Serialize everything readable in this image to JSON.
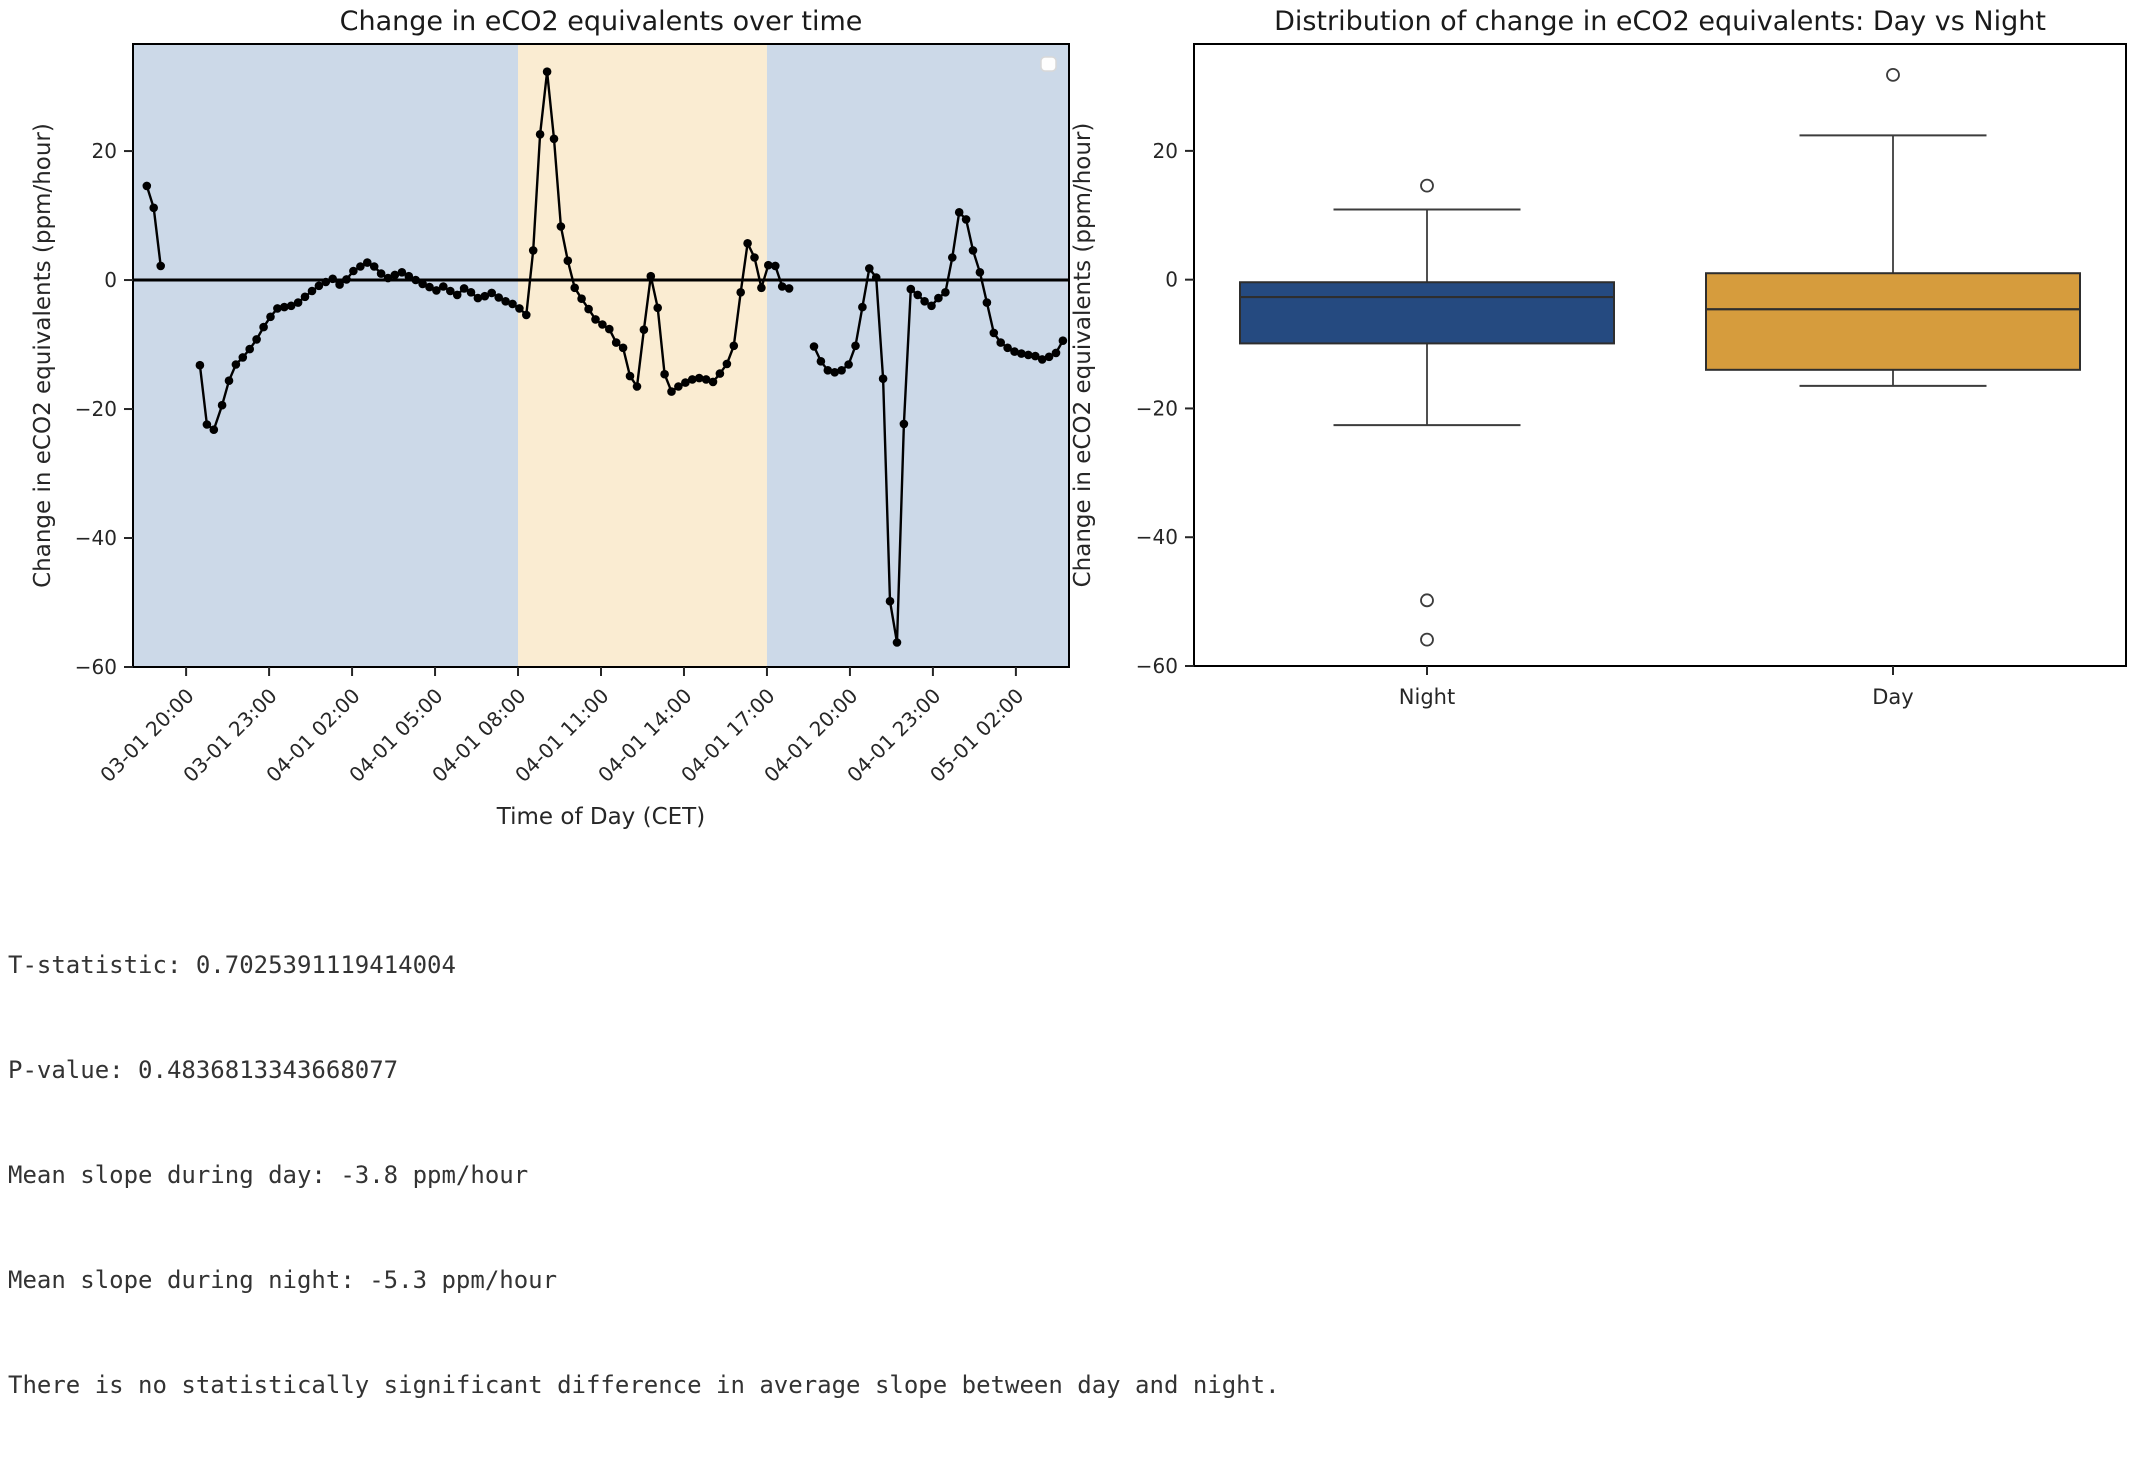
{
  "figure": {
    "background": "#ffffff",
    "text_color": "#262626"
  },
  "chart_data": [
    {
      "type": "line",
      "title": "Change in eCO2 equivalents over time",
      "xlabel": "Time of Day (CET)",
      "ylabel": "Change in eCO2 equivalents (ppm/hour)",
      "xlim": [
        18.08,
        51.92
      ],
      "ylim": [
        -60,
        36.6
      ],
      "grid": false,
      "legend": {
        "visible": true,
        "empty": true,
        "position": "upper right"
      },
      "line_color": "#000000",
      "marker": "circle",
      "ytick_values": [
        20,
        0,
        -20,
        -40,
        -60
      ],
      "ytick_labels": [
        "20",
        "0",
        "−20",
        "−40",
        "−60"
      ],
      "xtick_values": [
        20,
        23,
        26,
        29,
        32,
        35,
        38,
        41,
        44,
        47,
        50
      ],
      "xtick_labels": [
        "03-01 20:00",
        "03-01 23:00",
        "04-01 02:00",
        "04-01 05:00",
        "04-01 08:00",
        "04-01 11:00",
        "04-01 14:00",
        "04-01 17:00",
        "04-01 20:00",
        "04-01 23:00",
        "05-01 02:00"
      ],
      "zero_line": 0,
      "bands": [
        {
          "name": "night-shading-left",
          "from": 18.08,
          "to": 32,
          "color": "#ccd9e8"
        },
        {
          "name": "day-shading",
          "from": 32,
          "to": 41,
          "color": "#faecd2"
        },
        {
          "name": "night-shading-right",
          "from": 41,
          "to": 51.92,
          "color": "#ccd9e8"
        }
      ],
      "series": [
        {
          "name": "change-in-eco2",
          "segments": [
            [
              [
                18.58,
                14.6
              ],
              [
                18.83,
                11.2
              ],
              [
                19.08,
                2.2
              ]
            ],
            [
              [
                20.5,
                -13.2
              ],
              [
                20.75,
                -22.4
              ],
              [
                21.0,
                -23.2
              ],
              [
                21.3,
                -19.4
              ],
              [
                21.55,
                -15.6
              ],
              [
                21.8,
                -13.1
              ],
              [
                22.05,
                -12.0
              ],
              [
                22.3,
                -10.7
              ],
              [
                22.55,
                -9.2
              ],
              [
                22.8,
                -7.3
              ],
              [
                23.05,
                -5.7
              ],
              [
                23.3,
                -4.4
              ],
              [
                23.55,
                -4.2
              ],
              [
                23.8,
                -4.0
              ],
              [
                24.05,
                -3.5
              ],
              [
                24.3,
                -2.6
              ],
              [
                24.55,
                -1.7
              ],
              [
                24.8,
                -0.9
              ],
              [
                25.05,
                -0.3
              ],
              [
                25.3,
                0.2
              ],
              [
                25.55,
                -0.7
              ],
              [
                25.8,
                0.1
              ],
              [
                26.05,
                1.4
              ],
              [
                26.3,
                2.1
              ],
              [
                26.55,
                2.7
              ],
              [
                26.8,
                2.1
              ],
              [
                27.05,
                1.0
              ],
              [
                27.3,
                0.3
              ],
              [
                27.55,
                0.8
              ],
              [
                27.8,
                1.2
              ],
              [
                28.05,
                0.6
              ],
              [
                28.3,
                0.0
              ],
              [
                28.55,
                -0.6
              ],
              [
                28.8,
                -1.1
              ],
              [
                29.05,
                -1.6
              ],
              [
                29.3,
                -1.0
              ],
              [
                29.55,
                -1.7
              ],
              [
                29.8,
                -2.3
              ],
              [
                30.05,
                -1.3
              ],
              [
                30.3,
                -1.9
              ],
              [
                30.55,
                -2.8
              ],
              [
                30.8,
                -2.5
              ],
              [
                31.05,
                -2.0
              ],
              [
                31.3,
                -2.7
              ],
              [
                31.55,
                -3.3
              ],
              [
                31.8,
                -3.7
              ],
              [
                32.05,
                -4.4
              ],
              [
                32.3,
                -5.4
              ],
              [
                32.55,
                4.6
              ],
              [
                32.8,
                22.6
              ],
              [
                33.05,
                32.3
              ],
              [
                33.3,
                21.9
              ],
              [
                33.55,
                8.3
              ],
              [
                33.8,
                3.0
              ],
              [
                34.05,
                -1.2
              ],
              [
                34.3,
                -2.9
              ],
              [
                34.55,
                -4.5
              ],
              [
                34.8,
                -6.1
              ],
              [
                35.05,
                -6.9
              ],
              [
                35.3,
                -7.6
              ],
              [
                35.55,
                -9.7
              ],
              [
                35.8,
                -10.5
              ],
              [
                36.05,
                -14.9
              ],
              [
                36.3,
                -16.5
              ],
              [
                36.55,
                -7.7
              ],
              [
                36.8,
                0.6
              ],
              [
                37.05,
                -4.3
              ],
              [
                37.3,
                -14.6
              ],
              [
                37.55,
                -17.3
              ],
              [
                37.8,
                -16.5
              ],
              [
                38.05,
                -15.9
              ],
              [
                38.3,
                -15.4
              ],
              [
                38.55,
                -15.2
              ],
              [
                38.8,
                -15.4
              ],
              [
                39.05,
                -15.8
              ],
              [
                39.3,
                -14.5
              ],
              [
                39.55,
                -13.0
              ],
              [
                39.8,
                -10.2
              ],
              [
                40.05,
                -1.9
              ],
              [
                40.3,
                5.7
              ],
              [
                40.55,
                3.5
              ],
              [
                40.8,
                -1.2
              ],
              [
                41.05,
                2.3
              ],
              [
                41.3,
                2.2
              ],
              [
                41.55,
                -1.0
              ],
              [
                41.8,
                -1.3
              ]
            ],
            [
              [
                42.7,
                -10.3
              ],
              [
                42.95,
                -12.6
              ],
              [
                43.2,
                -14.0
              ],
              [
                43.45,
                -14.3
              ],
              [
                43.7,
                -14.0
              ],
              [
                43.95,
                -13.1
              ],
              [
                44.2,
                -10.2
              ],
              [
                44.45,
                -4.2
              ],
              [
                44.7,
                1.8
              ],
              [
                44.95,
                0.4
              ],
              [
                45.2,
                -15.3
              ],
              [
                45.45,
                -49.8
              ],
              [
                45.7,
                -56.2
              ],
              [
                45.95,
                -22.3
              ],
              [
                46.2,
                -1.4
              ],
              [
                46.45,
                -2.3
              ],
              [
                46.7,
                -3.3
              ],
              [
                46.95,
                -4.0
              ],
              [
                47.2,
                -2.8
              ],
              [
                47.45,
                -1.9
              ],
              [
                47.7,
                3.5
              ],
              [
                47.95,
                10.5
              ],
              [
                48.2,
                9.4
              ],
              [
                48.45,
                4.6
              ],
              [
                48.7,
                1.2
              ],
              [
                48.95,
                -3.5
              ],
              [
                49.2,
                -8.2
              ],
              [
                49.45,
                -9.7
              ],
              [
                49.7,
                -10.5
              ],
              [
                49.95,
                -11.1
              ],
              [
                50.2,
                -11.4
              ],
              [
                50.45,
                -11.6
              ],
              [
                50.7,
                -11.8
              ],
              [
                50.95,
                -12.3
              ],
              [
                51.2,
                -11.9
              ],
              [
                51.45,
                -11.3
              ],
              [
                51.7,
                -9.4
              ]
            ]
          ]
        }
      ]
    },
    {
      "type": "boxplot",
      "title": "Distribution of change in eCO2 equivalents: Day vs Night",
      "ylabel": "Change in eCO2 equivalents (ppm/hour)",
      "ylim": [
        -60,
        36.6
      ],
      "ytick_values": [
        20,
        0,
        -20,
        -40,
        -60
      ],
      "ytick_labels": [
        "20",
        "0",
        "−20",
        "−40",
        "−60"
      ],
      "categories": [
        "Night",
        "Day"
      ],
      "boxes": [
        {
          "label": "Night",
          "color": "#254a80",
          "q1": -9.9,
          "median": -2.7,
          "q3": -0.4,
          "whisker_low": -22.6,
          "whisker_high": 10.9,
          "fliers": [
            14.6,
            -49.8,
            -55.9
          ]
        },
        {
          "label": "Day",
          "color": "#d69c3d",
          "q1": -14.0,
          "median": -4.6,
          "q3": 1.0,
          "whisker_low": -16.5,
          "whisker_high": 22.4,
          "fliers": [
            31.8
          ]
        }
      ],
      "edge_color": "#2e2e2e",
      "whisker_color": "#3c3c3c"
    }
  ],
  "stats": {
    "lines": [
      "T-statistic: 0.7025391119414004",
      "P-value: 0.4836813343668077",
      "Mean slope during day: -3.8 ppm/hour",
      "Mean slope during night: -5.3 ppm/hour",
      "There is no statistically significant difference in average slope between day and night."
    ]
  }
}
